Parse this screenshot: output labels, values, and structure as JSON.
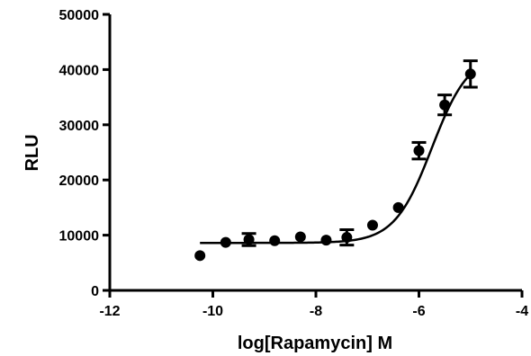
{
  "chart_data": {
    "type": "scatter",
    "xlabel": "log[Rapamycin] M",
    "ylabel": "RLU",
    "xlim": [
      -12,
      -4
    ],
    "ylim": [
      0,
      50000
    ],
    "x_ticks": [
      -12,
      -10,
      -8,
      -6,
      -4
    ],
    "y_ticks": [
      0,
      10000,
      20000,
      30000,
      40000,
      50000
    ],
    "x_tick_labels": [
      "-12",
      "-10",
      "-8",
      "-6",
      "-4"
    ],
    "y_tick_labels": [
      "0",
      "10000",
      "20000",
      "30000",
      "40000",
      "50000"
    ],
    "grid": false,
    "series": [
      {
        "points": [
          {
            "x": -10.25,
            "y": 6300,
            "err": 0
          },
          {
            "x": -9.75,
            "y": 8700,
            "err": 0
          },
          {
            "x": -9.3,
            "y": 9200,
            "err": 1100
          },
          {
            "x": -8.8,
            "y": 9000,
            "err": 0
          },
          {
            "x": -8.3,
            "y": 9700,
            "err": 0
          },
          {
            "x": -7.8,
            "y": 9100,
            "err": 0
          },
          {
            "x": -7.4,
            "y": 9600,
            "err": 1400
          },
          {
            "x": -6.9,
            "y": 11800,
            "err": 0
          },
          {
            "x": -6.4,
            "y": 15000,
            "err": 0
          },
          {
            "x": -6.0,
            "y": 25300,
            "err": 1500
          },
          {
            "x": -5.5,
            "y": 33600,
            "err": 1800
          },
          {
            "x": -5.0,
            "y": 39200,
            "err": 2400
          }
        ]
      }
    ],
    "fit_curve": {
      "type": "sigmoidal dose-response",
      "bottom": 8600,
      "top": 43000,
      "log_ec50": -5.75,
      "hill_slope": 1.2,
      "x_range": [
        -10.25,
        -5.0
      ]
    }
  }
}
